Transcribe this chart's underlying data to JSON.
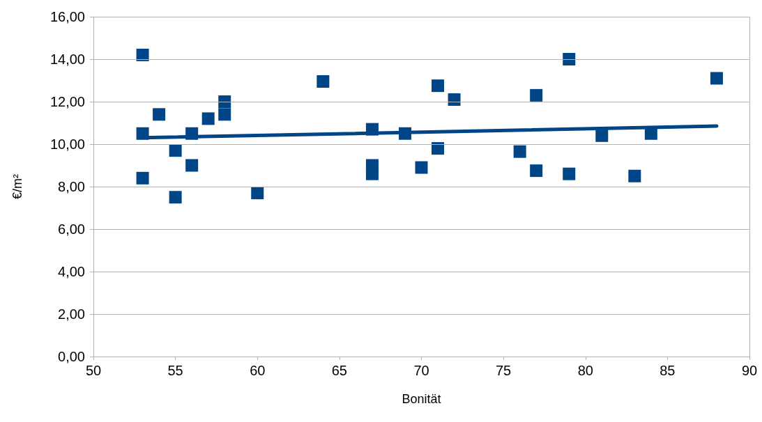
{
  "chart_data": {
    "type": "scatter",
    "xlabel": "Bonität",
    "ylabel": "€/m²",
    "marker": "square",
    "grid": "y",
    "series": [
      {
        "color": "#004586",
        "x": [
          53,
          53,
          53,
          54,
          55,
          55,
          56,
          56,
          57,
          58,
          58,
          60,
          64,
          67,
          67,
          67,
          69,
          70,
          71,
          71,
          72,
          76,
          77,
          77,
          79,
          79,
          81,
          83,
          84,
          88
        ],
        "values": [
          14.2,
          10.5,
          8.4,
          11.4,
          9.7,
          7.5,
          10.5,
          9.0,
          11.2,
          12.0,
          11.4,
          7.7,
          12.95,
          10.7,
          9.0,
          8.6,
          10.5,
          8.9,
          12.75,
          9.8,
          12.1,
          9.65,
          12.3,
          8.75,
          14.0,
          8.6,
          10.4,
          8.5,
          10.5,
          13.1
        ]
      },
      {
        "type": "line",
        "color": "#004586",
        "marker": "none",
        "x": [
          53,
          88
        ],
        "values": [
          10.3,
          10.85
        ]
      }
    ],
    "xlim": [
      50,
      90
    ],
    "xticks": [
      50,
      55,
      60,
      65,
      70,
      75,
      80,
      85,
      90
    ],
    "ylim": [
      0,
      16
    ],
    "yticks": [
      {
        "value": 0,
        "label": "0,00"
      },
      {
        "value": 2,
        "label": "2,00"
      },
      {
        "value": 4,
        "label": "4,00"
      },
      {
        "value": 6,
        "label": "6,00"
      },
      {
        "value": 8,
        "label": "8,00"
      },
      {
        "value": 10,
        "label": "10,00"
      },
      {
        "value": 12,
        "label": "12,00"
      },
      {
        "value": 14,
        "label": "14,00"
      },
      {
        "value": 16,
        "label": "16,00"
      }
    ]
  }
}
